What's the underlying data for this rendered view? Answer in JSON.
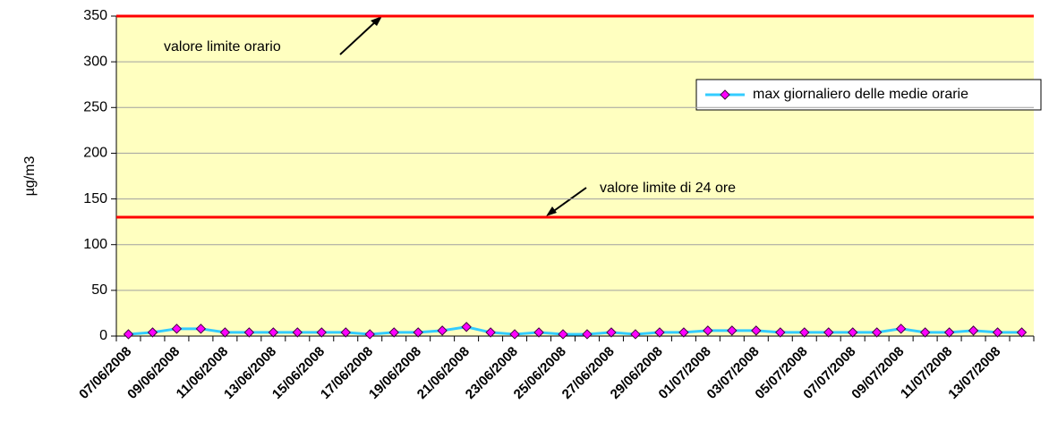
{
  "chart_data": {
    "type": "line",
    "y_label": "µg/m3",
    "categories": [
      "07/06/2008",
      null,
      "09/06/2008",
      null,
      "11/06/2008",
      null,
      "13/06/2008",
      null,
      "15/06/2008",
      null,
      "17/06/2008",
      null,
      "19/06/2008",
      null,
      "21/06/2008",
      null,
      "23/06/2008",
      null,
      "25/06/2008",
      null,
      "27/06/2008",
      null,
      "29/06/2008",
      null,
      "01/07/2008",
      null,
      "03/07/2008",
      null,
      "05/07/2008",
      null,
      "07/07/2008",
      null,
      "09/07/2008",
      null,
      "11/07/2008",
      null,
      "13/07/2008",
      null
    ],
    "series": [
      {
        "name": "max giornaliero delle medie orarie",
        "color": "#33ccff",
        "marker_color": "#ff00ff",
        "values": [
          2,
          4,
          8,
          8,
          4,
          4,
          4,
          4,
          4,
          4,
          2,
          4,
          4,
          6,
          10,
          4,
          2,
          4,
          2,
          2,
          4,
          2,
          4,
          4,
          6,
          6,
          6,
          4,
          4,
          4,
          4,
          4,
          8,
          4,
          4,
          6,
          4,
          4
        ]
      }
    ],
    "limit_lines": [
      {
        "label": "valore limite orario",
        "value": 350,
        "color": "#ff0000"
      },
      {
        "label": "valore limite di 24 ore",
        "value": 130,
        "color": "#ff0000"
      }
    ],
    "ylim": [
      0,
      350
    ],
    "yticks": [
      0,
      50,
      100,
      150,
      200,
      250,
      300,
      350
    ],
    "grid": true,
    "plot_background": "#ffffc0",
    "legend": "right"
  }
}
